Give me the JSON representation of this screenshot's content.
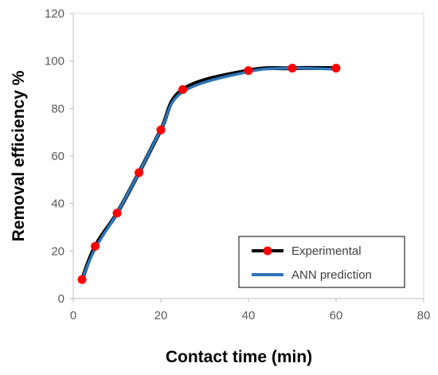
{
  "chart_data": {
    "type": "line",
    "xlabel": "Contact time (min)",
    "ylabel": "Removal efficiency %",
    "xlim": [
      0,
      80
    ],
    "ylim": [
      0,
      120
    ],
    "xticks": [
      0,
      20,
      40,
      60,
      80
    ],
    "yticks": [
      0,
      20,
      40,
      60,
      80,
      100,
      120
    ],
    "grid": false,
    "legend_position": "bottom-right",
    "series": [
      {
        "name": "Experimental",
        "color": "#000000",
        "marker_color": "#ff0000",
        "marker": "circle",
        "x": [
          2,
          5,
          10,
          15,
          20,
          25,
          40,
          50,
          60
        ],
        "y": [
          8,
          22,
          36,
          53,
          71,
          88,
          96,
          97,
          97
        ]
      },
      {
        "name": "ANN prediction",
        "color": "#2e75b6",
        "marker": "none",
        "x": [
          2,
          5,
          10,
          15,
          20,
          25,
          40,
          50,
          60
        ],
        "y": [
          8,
          21,
          36,
          53,
          71,
          87,
          95.5,
          97,
          96.5
        ]
      }
    ]
  }
}
